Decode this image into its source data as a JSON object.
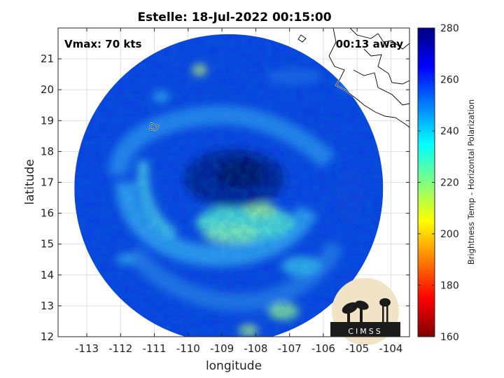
{
  "chart_data": {
    "type": "heatmap",
    "title": "Estelle: 18-Jul-2022 00:15:00",
    "xlabel": "longitude",
    "ylabel": "latitude",
    "xlim": [
      -113.85,
      -103.45
    ],
    "ylim": [
      12.0,
      22.0
    ],
    "x_ticks": [
      -113,
      -112,
      -111,
      -110,
      -109,
      -108,
      -107,
      -106,
      -105,
      -104
    ],
    "y_ticks": [
      12,
      13,
      14,
      15,
      16,
      17,
      18,
      19,
      20,
      21
    ],
    "grid": true,
    "annotations": {
      "vmax": "Vmax: 70 kts",
      "time_offset": "00:13 away"
    },
    "colorbar": {
      "label": "Brightness Temp - Horizontal Polarization",
      "range": [
        160,
        280
      ],
      "ticks": [
        160,
        180,
        200,
        220,
        240,
        260,
        280
      ],
      "colors": [
        "#800000",
        "#ff0000",
        "#ff8000",
        "#ffff00",
        "#80ff80",
        "#00ffff",
        "#0080ff",
        "#0000ff",
        "#000080"
      ]
    },
    "storm_center": {
      "lon": -108.7,
      "lat": 17.1
    },
    "swath": {
      "center_lon": -108.8,
      "center_lat": 16.8,
      "radius_deg": 5.0
    },
    "logo": "CIMSS"
  }
}
